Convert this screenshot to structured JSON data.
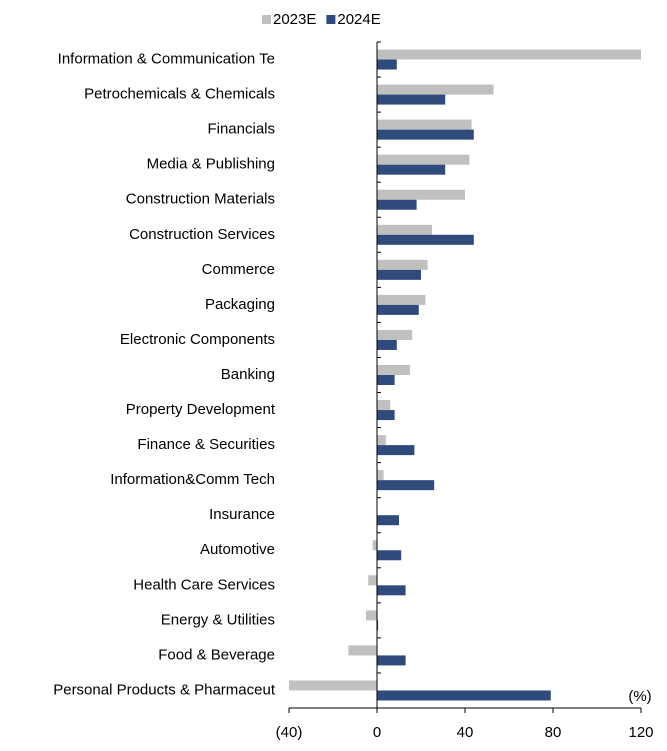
{
  "chart_data": {
    "type": "bar",
    "orientation": "horizontal",
    "categories": [
      "Information & Communication Te",
      "Petrochemicals & Chemicals",
      "Financials",
      "Media & Publishing",
      "Construction Materials",
      "Construction Services",
      "Commerce",
      "Packaging",
      "Electronic Components",
      "Banking",
      "Property Development",
      "Finance & Securities",
      "Information&Comm Tech",
      "Insurance",
      "Automotive",
      "Health Care Services",
      "Energy & Utilities",
      "Food & Beverage",
      "Personal Products & Pharmaceut"
    ],
    "series": [
      {
        "name": "2023E",
        "color": "#c0c0c0",
        "values": [
          120,
          53,
          43,
          42,
          40,
          25,
          23,
          22,
          16,
          15,
          6,
          4,
          3,
          0,
          -2,
          -4,
          -5,
          -13,
          -40
        ]
      },
      {
        "name": "2024E",
        "color": "#2f4b7c",
        "values": [
          9,
          31,
          44,
          31,
          18,
          44,
          20,
          19,
          9,
          8,
          8,
          17,
          26,
          10,
          11,
          13,
          0.5,
          13,
          79
        ]
      }
    ],
    "xlim": [
      -40,
      120
    ],
    "xticks": [
      {
        "value": -40,
        "label": "(40)"
      },
      0,
      40,
      80,
      120
    ],
    "unit_label": "(%)",
    "legend": "top"
  }
}
